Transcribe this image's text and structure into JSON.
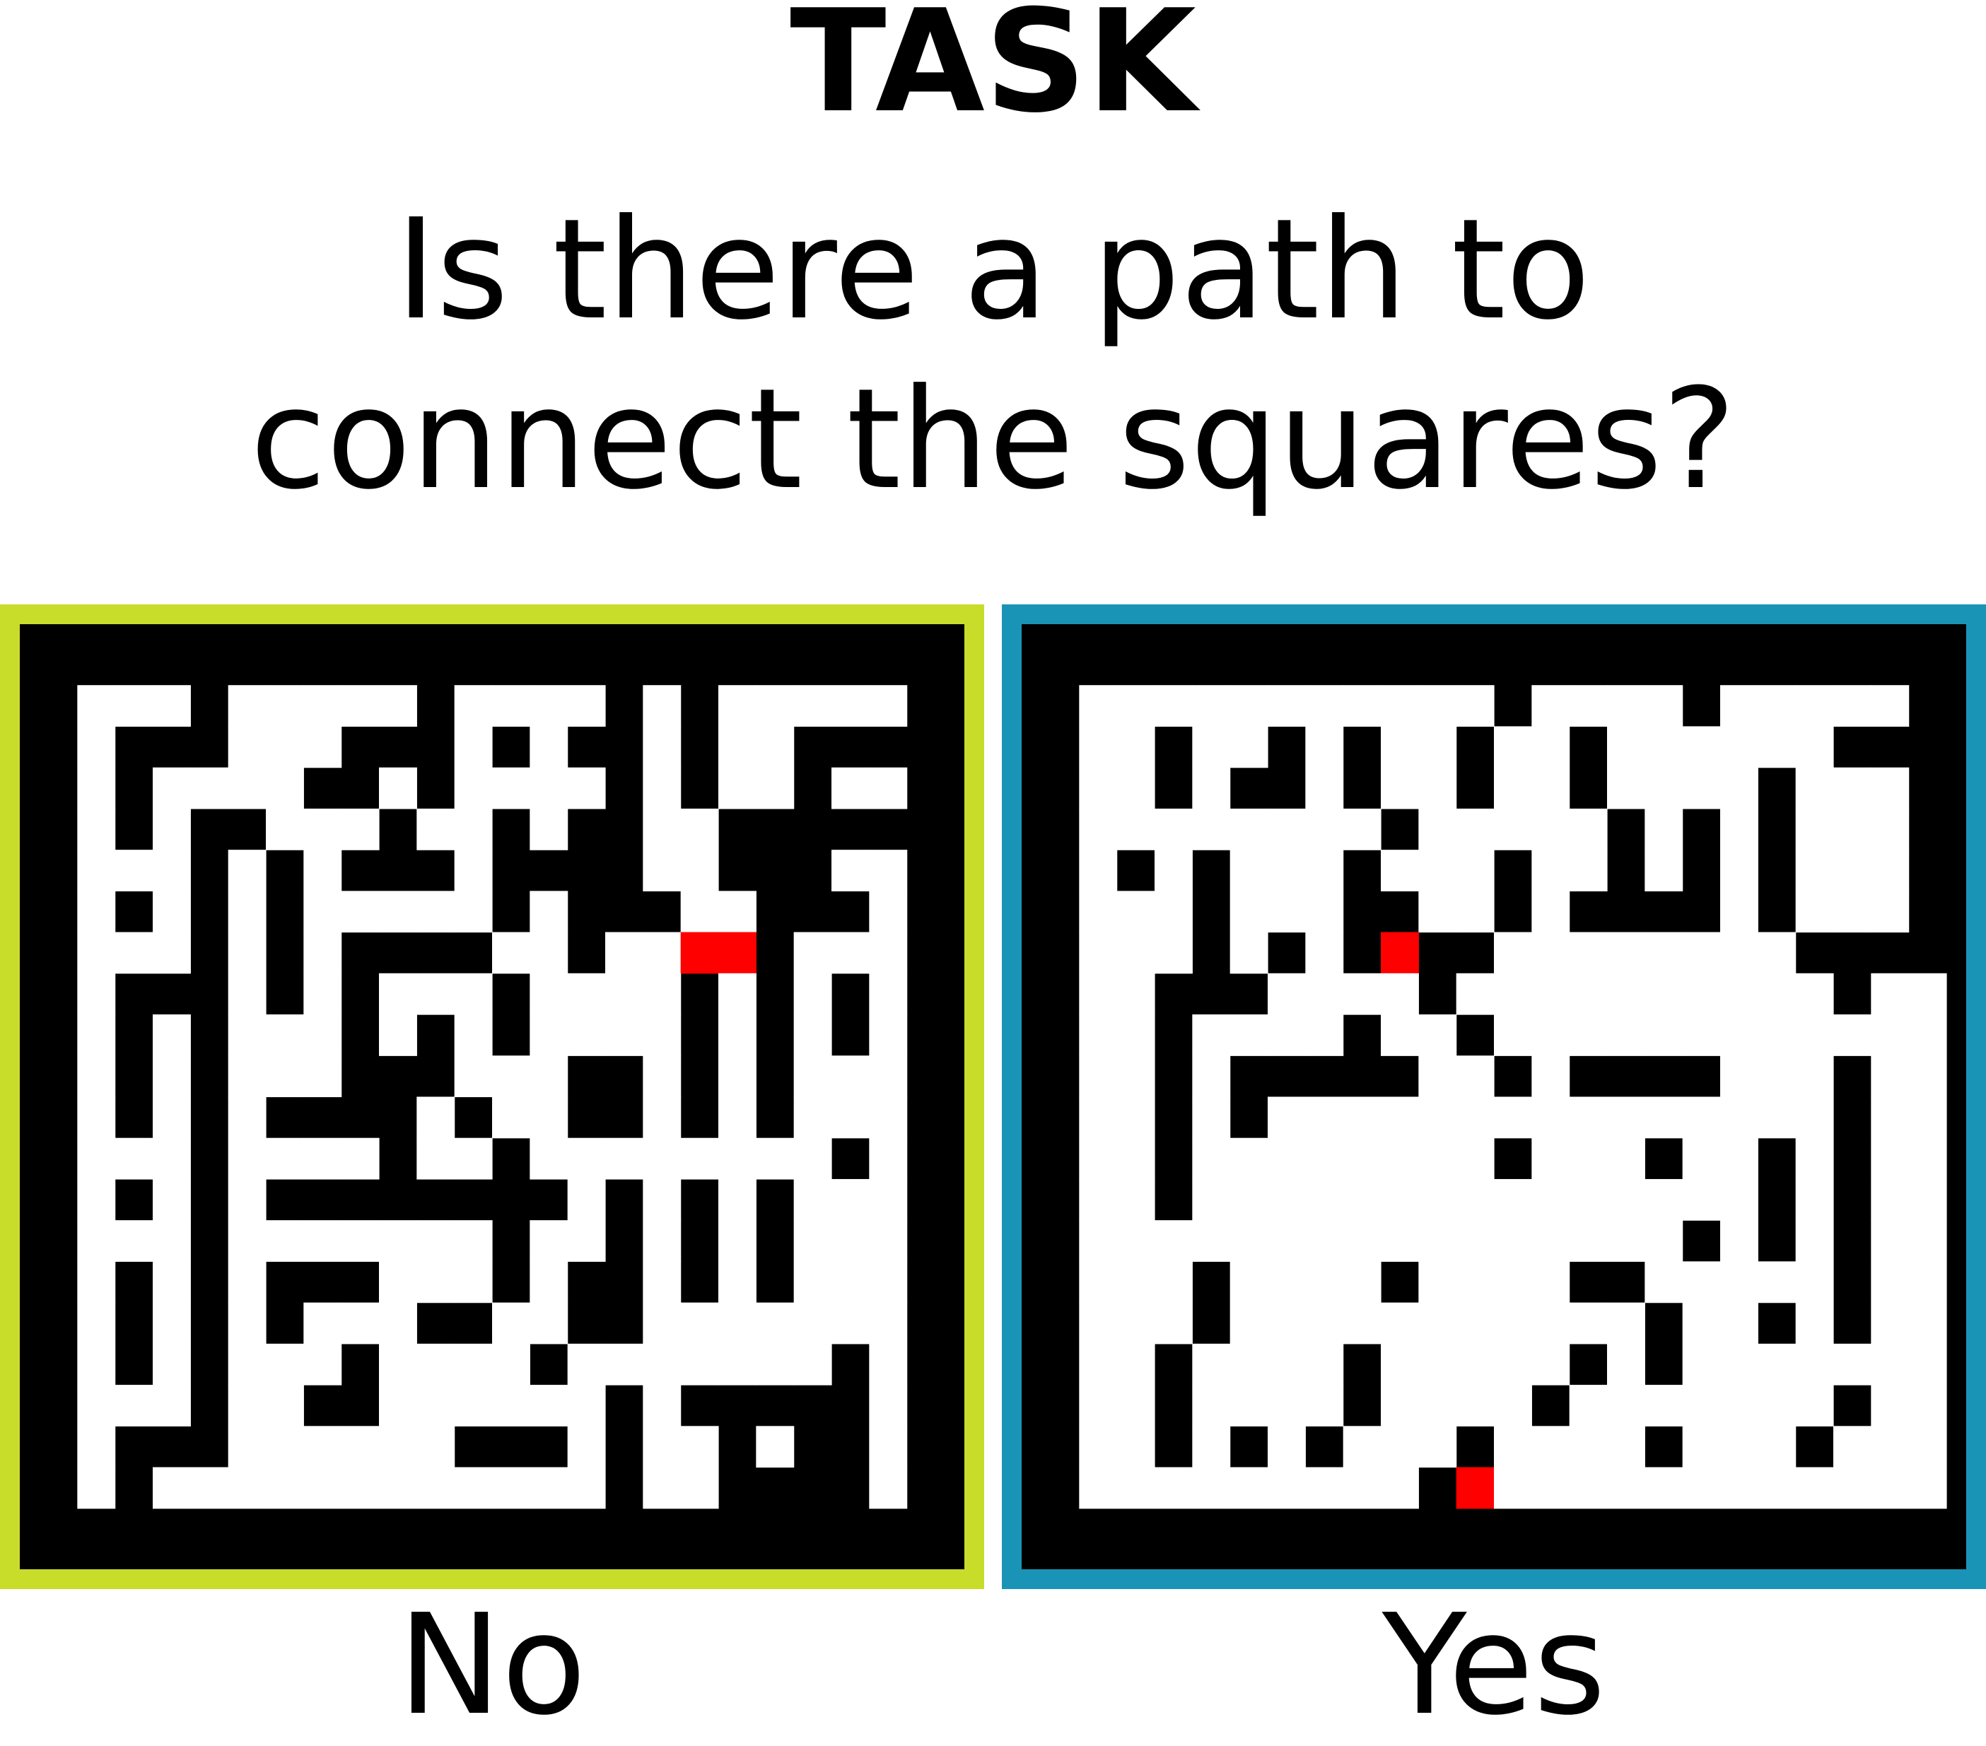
{
  "title": "TASK",
  "question": {
    "line1": "Is there a path to",
    "line2": "connect the squares?"
  },
  "colors": {
    "left_frame": "#c8dc2a",
    "right_frame": "#1a94b6",
    "wall": "#000000",
    "path": "#ffffff",
    "marker": "#ff0000"
  },
  "panels": [
    {
      "answer": "No",
      "maze": [
        "000000000000000000000000",
        "011101111101111010111110",
        "010001110001010010110000",
        "010111100101111010110110",
        "010100111011010011000000",
        "011101010001000011000110",
        "010101011111010001100010",
        "011101010000110113201110",
        "010001010111011110101010",
        "010101110101011110101010",
        "010101110001110010101110",
        "010101000010110010101110",
        "011101111011011111111010",
        "010101000000001010101110",
        "011101111111011010101110",
        "010101000111010010101110",
        "010101011100110011111110",
        "010101110111101111111010",
        "011101100111111010000010",
        "010001111110001011010010",
        "010111111111111011000010",
        "000000000000000000000000"
      ]
    },
    {
      "answer": "Yes",
      "maze": [
        "000000000000000000000000",
        "011111111111011110111110",
        "011011010110110111111000",
        "011010010110110111101110",
        "011111111011111010101110",
        "010101110111011010101110",
        "011101110011010000101110",
        "011101010300111111110000",
        "011000111101111111111011",
        "011011110110111111111111",
        "011010000011010000111011",
        "011010111111111111111011",
        "011011111111011101101011",
        "011011111111111111101011",
        "011111111111111110101011",
        "011101111011110011111011",
        "011101111111111101101011",
        "011011110111110101111111",
        "011011110111101111111011",
        "011010101110111101110111",
        "011111111103111111111111",
        "000000000000000000000000"
      ]
    }
  ]
}
